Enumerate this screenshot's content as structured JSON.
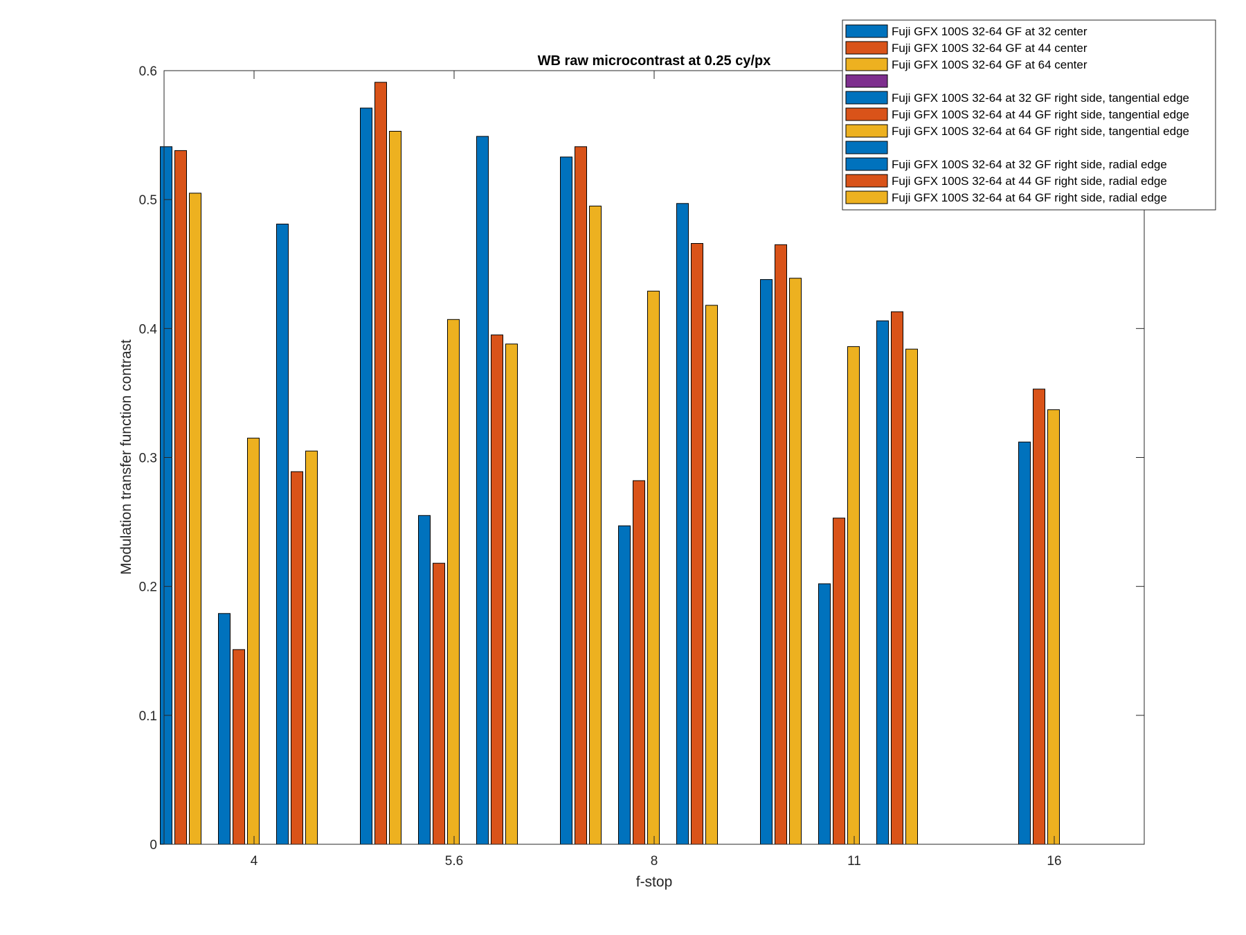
{
  "chart_data": {
    "type": "bar",
    "title": "WB raw  microcontrast at 0.25 cy/px",
    "xlabel": "f-stop",
    "ylabel": "Modulation transfer function contrast",
    "ylim": [
      0,
      0.6
    ],
    "yticks": [
      "0",
      "0.1",
      "0.2",
      "0.3",
      "0.4",
      "0.5",
      "0.6"
    ],
    "xtick_labels": [
      "4",
      "5.6",
      "8",
      "11",
      "16"
    ],
    "grid": false,
    "legend_position": "top-right",
    "categories": [
      "4",
      "5.6",
      "8",
      "11",
      "16"
    ],
    "series_groups": [
      {
        "group": "center",
        "series": [
          {
            "name": "Fuji GFX 100S 32-64 GF at 32 center",
            "color": "#0072BD",
            "values": [
              0.541,
              0.571,
              0.533,
              0.438,
              0.0
            ]
          },
          {
            "name": "Fuji GFX 100S 32-64 GF at 44 center",
            "color": "#D95319",
            "values": [
              0.538,
              0.591,
              0.541,
              0.465,
              0.0
            ]
          },
          {
            "name": "Fuji GFX 100S 32-64 GF at 64 center",
            "color": "#EDB120",
            "values": [
              0.505,
              0.553,
              0.495,
              0.439,
              0.0
            ]
          }
        ]
      },
      {
        "group": "tangential",
        "series": [
          {
            "name": "Fuji GFX 100S 32-64 at 32 GF right side, tangential edge",
            "color": "#0072BD",
            "values": [
              0.179,
              0.255,
              0.247,
              0.202,
              0.312
            ]
          },
          {
            "name": "Fuji GFX 100S 32-64 at 44 GF right side, tangential edge",
            "color": "#D95319",
            "values": [
              0.151,
              0.218,
              0.282,
              0.253,
              0.353
            ]
          },
          {
            "name": "Fuji GFX 100S 32-64 at 64 GF right side, tangential edge",
            "color": "#EDB120",
            "values": [
              0.315,
              0.407,
              0.429,
              0.386,
              0.337
            ]
          }
        ]
      },
      {
        "group": "radial",
        "series": [
          {
            "name": "Fuji GFX 100S 32-64 at 32 GF right side, radial edge",
            "color": "#0072BD",
            "values": [
              0.481,
              0.549,
              0.497,
              0.406,
              0.0
            ]
          },
          {
            "name": "Fuji GFX 100S 32-64 at 44 GF right side, radial edge",
            "color": "#D95319",
            "values": [
              0.289,
              0.395,
              0.466,
              0.413,
              0.0
            ]
          },
          {
            "name": "Fuji GFX 100S 32-64 at 64 GF right side, radial edge",
            "color": "#EDB120",
            "values": [
              0.305,
              0.388,
              0.418,
              0.384,
              0.0
            ]
          }
        ]
      }
    ],
    "legend": [
      {
        "label": "Fuji GFX 100S 32-64 GF at 32 center",
        "color": "#0072BD"
      },
      {
        "label": "Fuji GFX 100S 32-64 GF at 44 center",
        "color": "#D95319"
      },
      {
        "label": "Fuji GFX 100S 32-64 GF at 64 center",
        "color": "#EDB120"
      },
      {
        "label": "",
        "color": "#7E2F8E"
      },
      {
        "label": "Fuji GFX 100S 32-64 at 32 GF right side, tangential edge",
        "color": "#0072BD"
      },
      {
        "label": "Fuji GFX 100S 32-64 at 44 GF right side, tangential edge",
        "color": "#D95319"
      },
      {
        "label": "Fuji GFX 100S 32-64 at 64 GF right side, tangential edge",
        "color": "#EDB120"
      },
      {
        "label": "",
        "color": "#0072BD"
      },
      {
        "label": "Fuji GFX 100S 32-64 at 32 GF right side, radial edge",
        "color": "#0072BD"
      },
      {
        "label": "Fuji GFX 100S 32-64 at 44 GF right side, radial edge",
        "color": "#D95319"
      },
      {
        "label": "Fuji GFX 100S 32-64 at 64 GF right side, radial edge",
        "color": "#EDB120"
      }
    ]
  }
}
